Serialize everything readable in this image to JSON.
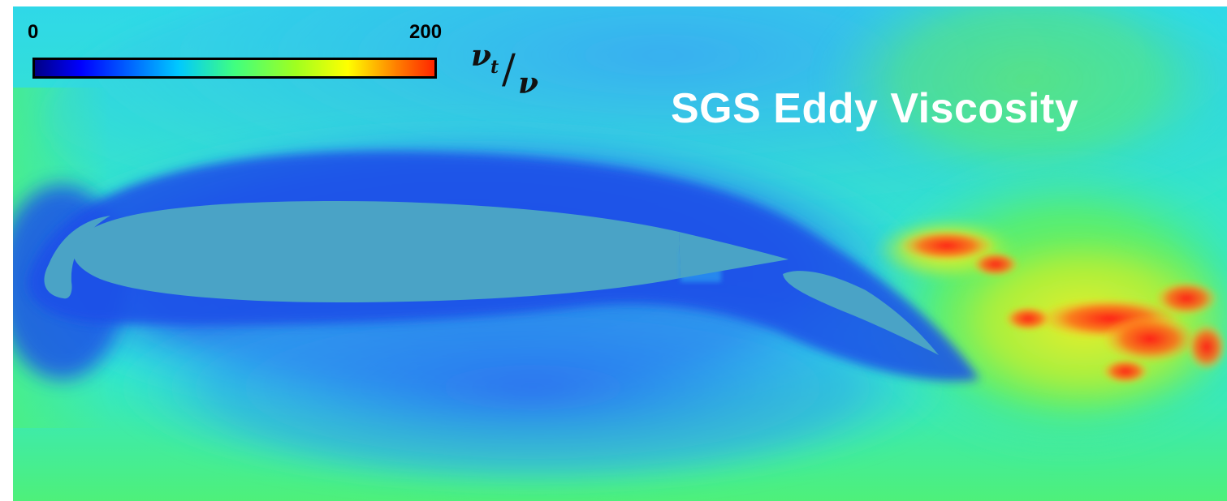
{
  "title": "SGS Eddy Viscosity",
  "colorbar": {
    "min_label": "0",
    "max_label": "200",
    "variable_numerator": "ν",
    "variable_subscript": "t",
    "variable_slash": "/",
    "variable_denominator": "ν",
    "colormap": "jet",
    "colors": [
      "#00007f",
      "#0000ff",
      "#007fff",
      "#00ffff",
      "#7fff7f",
      "#ffff00",
      "#ff7f00",
      "#ff0000"
    ]
  },
  "airfoil_fill": "#4aa3c6",
  "field_colors": {
    "background": "#2fe0d8",
    "far_field": "#38e3a0",
    "boundary_layer": "#1f5ae6",
    "wake_green": "#4bef4b",
    "wake_yellow": "#d9ef2a",
    "wake_red": "#ff2a1a"
  }
}
